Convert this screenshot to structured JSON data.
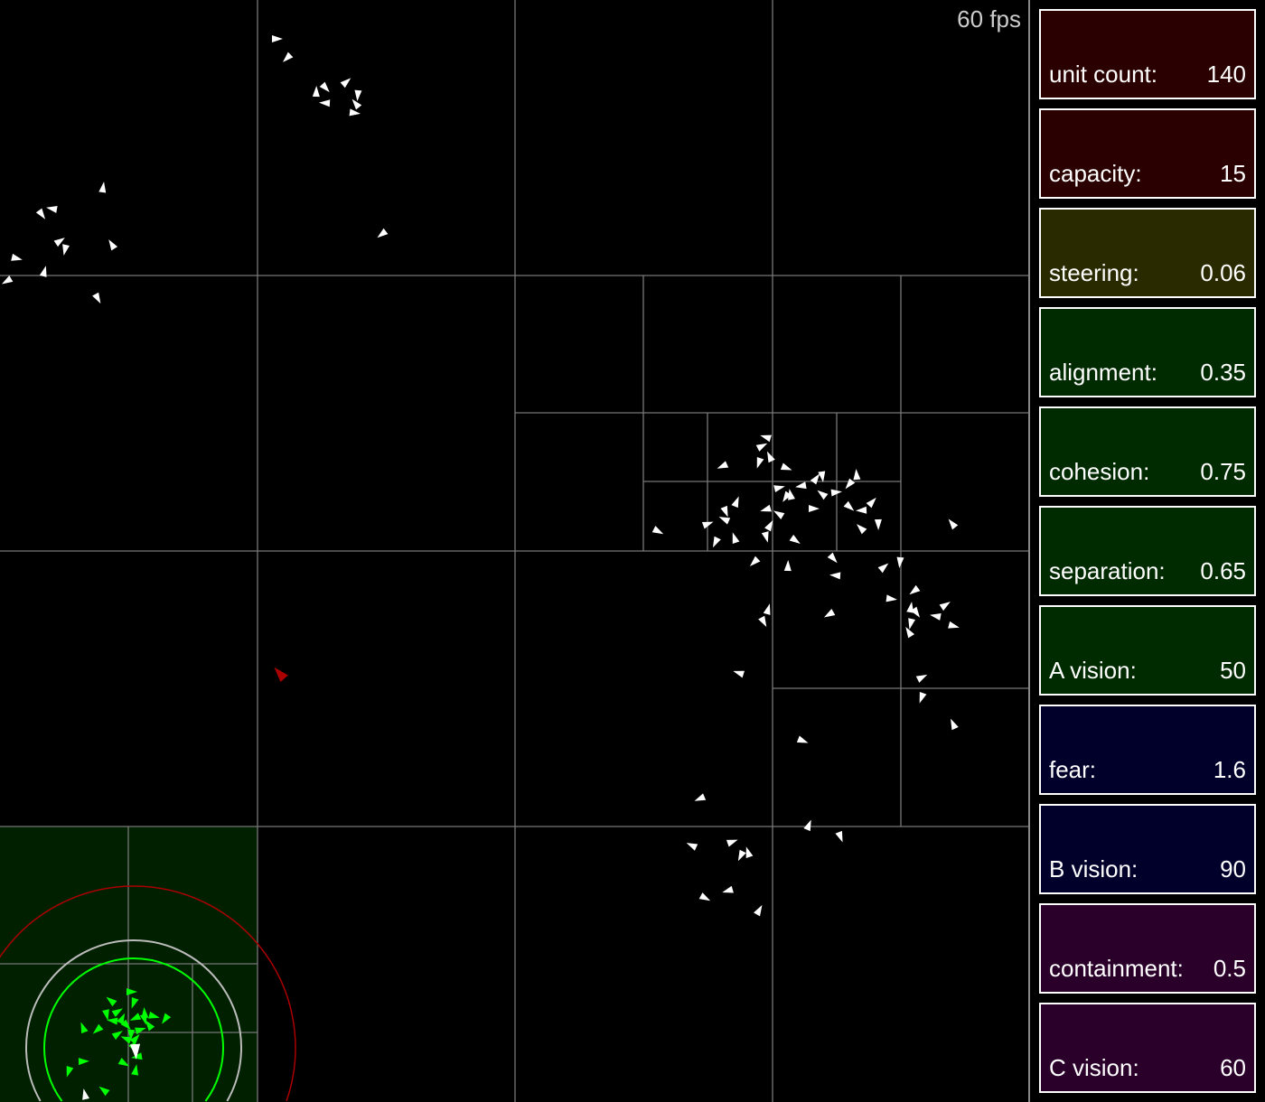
{
  "fps": {
    "value": "60 fps"
  },
  "panel": {
    "items": [
      {
        "label": "unit count:",
        "value": "140",
        "color": "#2a0000"
      },
      {
        "label": "capacity:",
        "value": "15",
        "color": "#2a0000"
      },
      {
        "label": "steering:",
        "value": "0.06",
        "color": "#2a2a00"
      },
      {
        "label": "alignment:",
        "value": "0.35",
        "color": "#002a00"
      },
      {
        "label": "cohesion:",
        "value": "0.75",
        "color": "#002a00"
      },
      {
        "label": "separation:",
        "value": "0.65",
        "color": "#002a00"
      },
      {
        "label": "A vision:",
        "value": "50",
        "color": "#002a00"
      },
      {
        "label": "fear:",
        "value": "1.6",
        "color": "#00002a"
      },
      {
        "label": "B vision:",
        "value": "90",
        "color": "#00002a"
      },
      {
        "label": "containment:",
        "value": "0.5",
        "color": "#2a002a"
      },
      {
        "label": "C vision:",
        "value": "60",
        "color": "#2a002a"
      }
    ]
  },
  "colors": {
    "boid": "#ffffff",
    "neighbor": "#00ff00",
    "predator": "#aa0000",
    "grid": "#777777",
    "highlight_cell": "#002000"
  }
}
